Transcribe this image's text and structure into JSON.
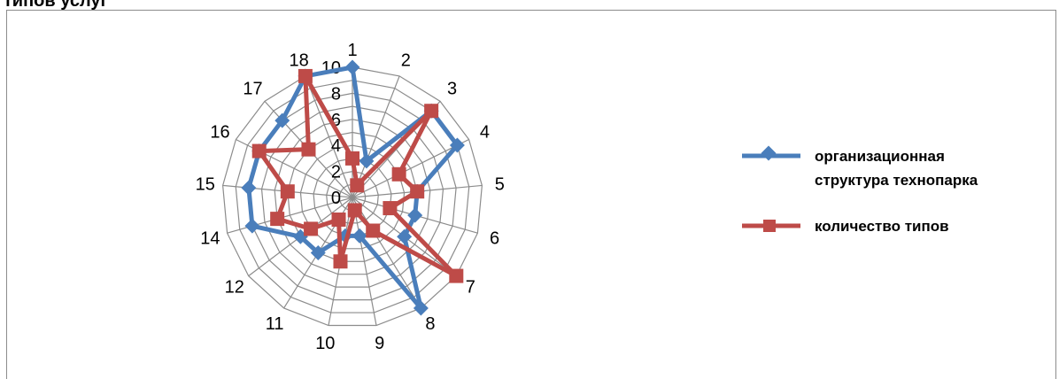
{
  "page": {
    "title": "типов услуг"
  },
  "colors": {
    "series1": "#4a7ebb",
    "series2": "#be4b48",
    "grid": "#8c8c8c"
  },
  "chart_data": {
    "type": "radar",
    "title": "",
    "categories": [
      "1",
      "2",
      "3",
      "4",
      "5",
      "6",
      "7",
      "8",
      "9",
      "10",
      "11",
      "12",
      "14",
      "15",
      "16",
      "17",
      "18"
    ],
    "ylim": [
      0,
      10
    ],
    "yticks": [
      0,
      2,
      4,
      6,
      8,
      10
    ],
    "grid": true,
    "legend_position": "right",
    "series": [
      {
        "name": "организационная структура технопарка",
        "marker": "diamond",
        "color": "#4a7ebb",
        "values": [
          10,
          3,
          9,
          9,
          5,
          5,
          5,
          10,
          3,
          3,
          5,
          5,
          8,
          8,
          8,
          8,
          10
        ]
      },
      {
        "name": "количество типов",
        "marker": "square",
        "color": "#be4b48",
        "values": [
          3,
          1,
          9,
          4,
          5,
          3,
          10,
          3,
          1,
          5,
          2,
          4,
          6,
          5,
          8,
          5,
          10
        ]
      }
    ],
    "legend": [
      {
        "line1": "организационная",
        "line2": "структура технопарка"
      },
      {
        "line1": "количество типов",
        "line2": ""
      }
    ]
  }
}
